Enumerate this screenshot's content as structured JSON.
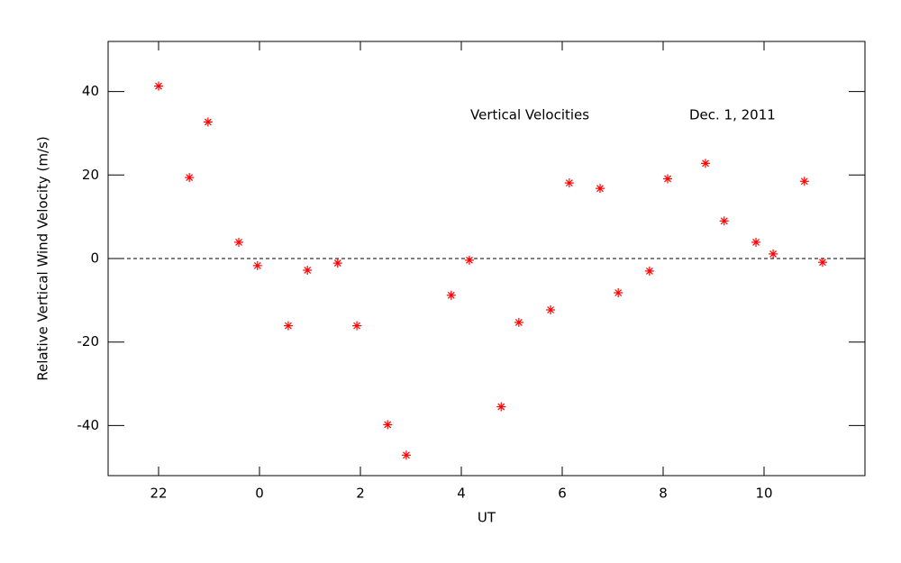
{
  "chart_data": {
    "type": "scatter",
    "title": "Vertical Velocities",
    "annotations": [
      "Dec. 1, 2011"
    ],
    "xlabel": "UT",
    "ylabel": "Relative Vertical Wind Velocity (m/s)",
    "xlim": [
      -3,
      12
    ],
    "ylim": [
      -52,
      52
    ],
    "xticks": [
      {
        "value": -2,
        "label": "22"
      },
      0,
      2,
      4,
      6,
      8,
      10
    ],
    "yticks": [
      -40,
      -20,
      0,
      20,
      40
    ],
    "reference_line": 0,
    "marker": "asterisk",
    "color": "#ff0000",
    "x": [
      -2.0,
      -1.39,
      -1.02,
      -0.41,
      -0.04,
      0.57,
      0.95,
      1.55,
      1.93,
      2.54,
      2.91,
      3.8,
      4.16,
      4.79,
      5.14,
      5.77,
      6.14,
      6.75,
      7.11,
      7.73,
      8.09,
      8.84,
      9.21,
      9.84,
      10.18,
      10.8,
      11.16
    ],
    "values": [
      41.3,
      19.4,
      32.7,
      3.9,
      -1.7,
      -16.1,
      -2.8,
      -1.1,
      -16.1,
      -39.8,
      -47.1,
      -8.8,
      -0.4,
      -35.5,
      -15.3,
      -12.3,
      18.1,
      16.8,
      -8.2,
      -3.0,
      19.1,
      22.8,
      9.0,
      3.9,
      1.1,
      18.5,
      -0.9
    ]
  }
}
